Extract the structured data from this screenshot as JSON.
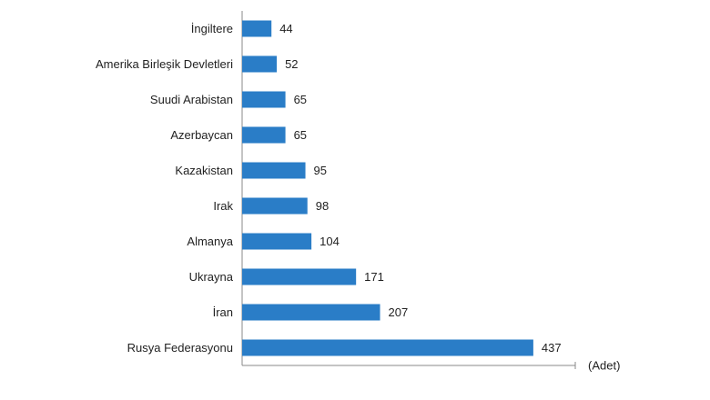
{
  "chart_data": {
    "type": "barh",
    "categories": [
      "İngiltere",
      "Amerika Birleşik Devletleri",
      "Suudi Arabistan",
      "Azerbaycan",
      "Kazakistan",
      "Irak",
      "Almanya",
      "Ukrayna",
      "İran",
      "Rusya Federasyonu"
    ],
    "values": [
      44,
      52,
      65,
      65,
      95,
      98,
      104,
      171,
      207,
      437
    ],
    "color": "#2a7dc7",
    "xlim": [
      0,
      500
    ],
    "xlabel": "(Adet)"
  }
}
